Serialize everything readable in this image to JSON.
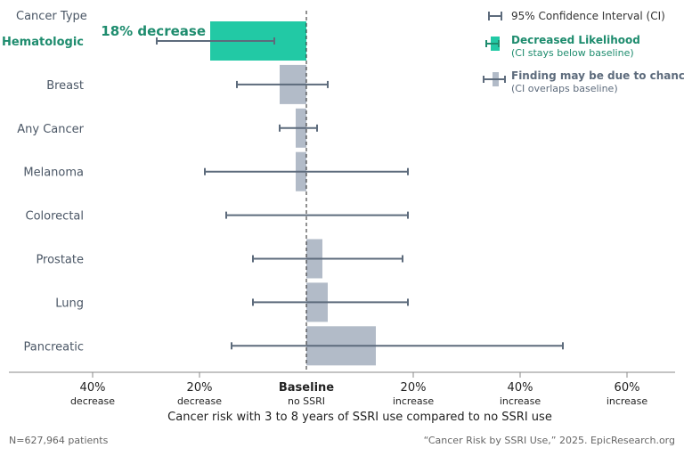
{
  "chart_data": {
    "type": "bar",
    "orientation": "horizontal",
    "title": "",
    "category_axis_title": "Cancer Type",
    "xlabel": "Cancer risk with 3 to 8 years of SSRI use compared to no SSRI use",
    "xlim": [
      -0.56,
      0.61
    ],
    "baseline": {
      "label": "Baseline",
      "sublabel": "no SSRI"
    },
    "ticks": [
      {
        "value": -0.4,
        "label": "40%",
        "sub": "decrease"
      },
      {
        "value": -0.2,
        "label": "20%",
        "sub": "decrease"
      },
      {
        "value": 0.2,
        "label": "20%",
        "sub": "increase"
      },
      {
        "value": 0.4,
        "label": "40%",
        "sub": "increase"
      },
      {
        "value": 0.6,
        "label": "60%",
        "sub": "increase"
      }
    ],
    "categories": [
      "Hematologic",
      "Breast",
      "Any Cancer",
      "Melanoma",
      "Colorectal",
      "Prostate",
      "Lung",
      "Pancreatic"
    ],
    "values": [
      -0.18,
      -0.05,
      -0.02,
      -0.02,
      0.0,
      0.03,
      0.04,
      0.13
    ],
    "ci_low": [
      -0.28,
      -0.13,
      -0.05,
      -0.19,
      -0.15,
      -0.1,
      -0.1,
      -0.14
    ],
    "ci_high": [
      -0.06,
      0.04,
      0.02,
      0.19,
      0.19,
      0.18,
      0.19,
      0.48
    ],
    "significant": [
      true,
      false,
      false,
      false,
      false,
      false,
      false,
      false
    ],
    "annotations": [
      {
        "category": "Hematologic",
        "text": "18% decrease"
      }
    ],
    "legend": {
      "position": "top-right",
      "items": [
        {
          "label": "95% Confidence Interval (CI)",
          "sub": ""
        },
        {
          "label": "Decreased Likelihood",
          "sub": "(CI stays below baseline)"
        },
        {
          "label": "Finding may be due to chance",
          "sub": "(CI overlaps baseline)"
        }
      ]
    },
    "colors": {
      "significant": "#22c9a5",
      "significant_text": "#1e8c6e",
      "neutral": "#b2bbc8",
      "ci": "#5d6b7c",
      "text": "#4a5665",
      "axis": "#888888"
    }
  },
  "footer": {
    "left": "N=627,964 patients",
    "right": "“Cancer Risk by SSRI Use,” 2025. EpicResearch.org"
  }
}
